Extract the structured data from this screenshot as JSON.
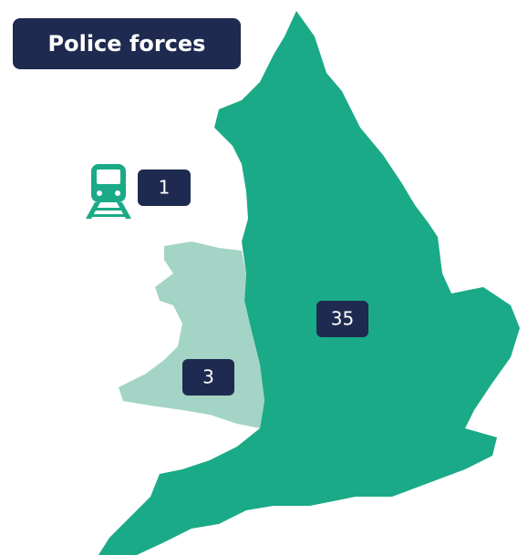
{
  "title": "Police forces",
  "counts": [
    1,
    35,
    3
  ]
}
